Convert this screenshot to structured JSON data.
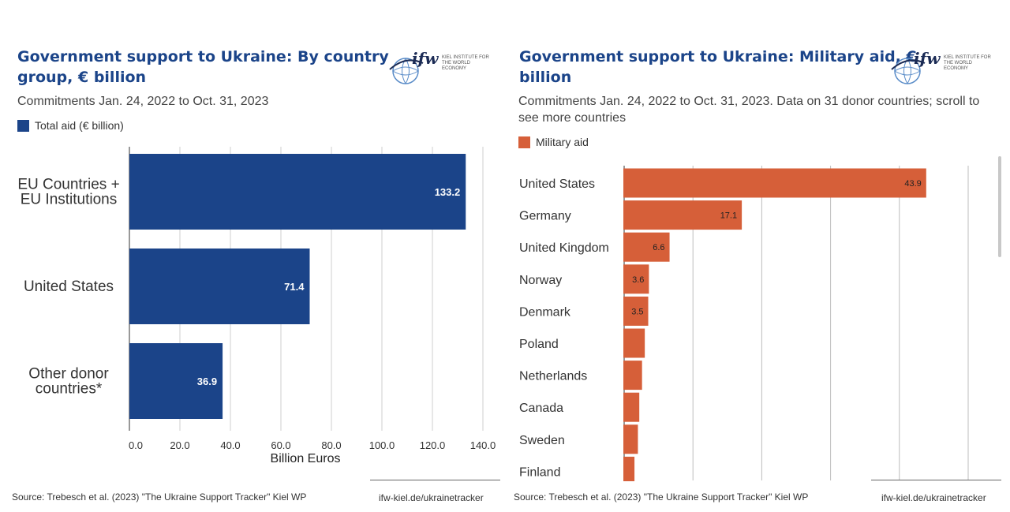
{
  "left": {
    "title_line1": "Government support to Ukraine: By country",
    "title_line2": "group, € billion",
    "subtitle": "Commitments Jan. 24, 2022 to Oct. 31, 2023",
    "legend_label": "Total aid (€ billion)",
    "source": "Source: Trebesch et al. (2023) \"The Ukraine Support Tracker\" Kiel WP",
    "link": "ifw-kiel.de/ukrainetracker"
  },
  "right": {
    "title_line1": "Government support to Ukraine: Military aid, €",
    "title_line2": "billion",
    "subtitle_line1": "Commitments Jan. 24, 2022 to Oct. 31, 2023. Data on 31 donor countries; scroll to",
    "subtitle_line2": "see more countries",
    "legend_label": "Military aid",
    "source": "Source: Trebesch et al. (2023) \"The Ukraine Support Tracker\" Kiel WP",
    "link": "ifw-kiel.de/ukrainetracker"
  },
  "logo": {
    "mark": "ifw",
    "line1": "KIEL INSTITUTE FOR",
    "line2": "THE WORLD ECONOMY"
  },
  "chart_data": [
    {
      "type": "bar",
      "orientation": "horizontal",
      "title": "Government support to Ukraine: By country group, € billion",
      "subtitle": "Commitments Jan. 24, 2022 to Oct. 31, 2023",
      "categories": [
        [
          "EU Countries +",
          "EU Institutions"
        ],
        [
          "United States"
        ],
        [
          "Other donor",
          "countries*"
        ]
      ],
      "series": [
        {
          "name": "Total aid (€ billion)",
          "values": [
            133.2,
            71.4,
            36.9
          ],
          "labels": [
            "133.2",
            "71.4",
            "36.9"
          ]
        }
      ],
      "xlabel": "Billion Euros",
      "xlim": [
        0,
        140
      ],
      "xticks": [
        "0.0",
        "20.0",
        "40.0",
        "60.0",
        "80.0",
        "100.0",
        "120.0",
        "140.0"
      ],
      "grid": true,
      "color": "#1b4489"
    },
    {
      "type": "bar",
      "orientation": "horizontal",
      "title": "Government support to Ukraine: Military aid, € billion",
      "categories": [
        "United States",
        "Germany",
        "United Kingdom",
        "Norway",
        "Denmark",
        "Poland",
        "Netherlands",
        "Canada",
        "Sweden",
        "Finland"
      ],
      "series": [
        {
          "name": "Military aid",
          "values": [
            43.9,
            17.1,
            6.6,
            3.6,
            3.5,
            3.0,
            2.6,
            2.2,
            2.0,
            1.5
          ],
          "labels": [
            "43.9",
            "17.1",
            "6.6",
            "3.6",
            "3.5",
            "",
            "",
            "",
            "",
            ""
          ]
        }
      ],
      "xlim": [
        0,
        50
      ],
      "grid": true,
      "color": "#d65f39"
    }
  ]
}
